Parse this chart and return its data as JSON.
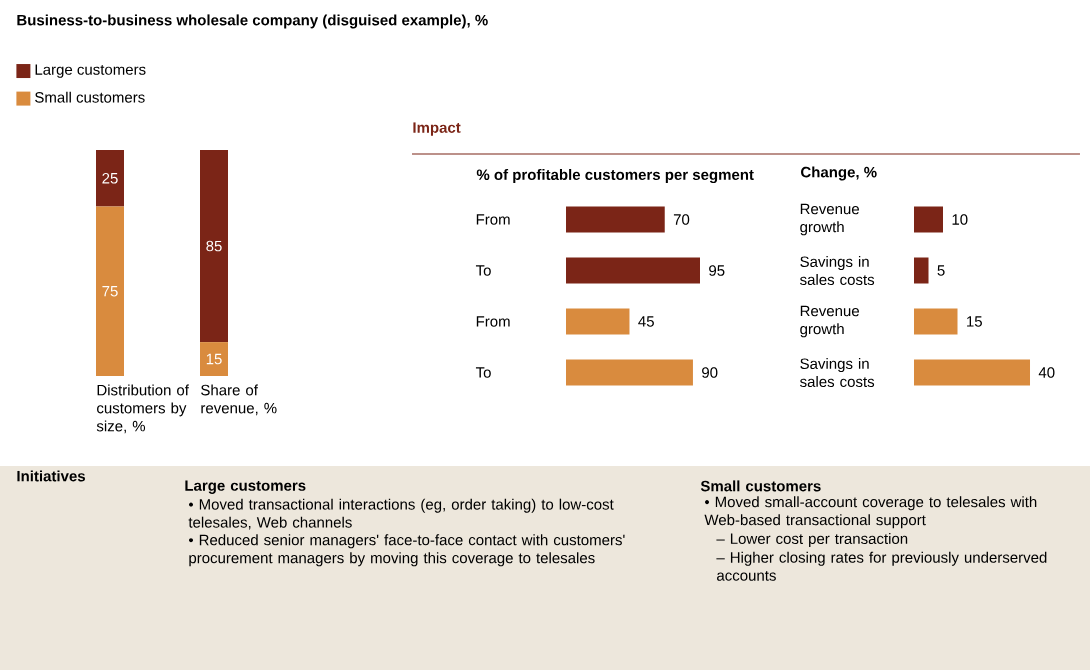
{
  "chart_data": [
    {
      "type": "bar",
      "title": "Business-to-business wholesale company (disguised example), %",
      "categories": [
        "Distribution of customers by size, %",
        "Share of revenue, %"
      ],
      "stacked": true,
      "legend": "top left",
      "data_labels": true,
      "series": [
        {
          "name": "Small customers",
          "color": "#d98b3e",
          "values": [
            75,
            15
          ]
        },
        {
          "name": "Large customers",
          "color": "#7b2517",
          "values": [
            25,
            85
          ]
        }
      ]
    },
    {
      "type": "bar",
      "title": "Impact",
      "subtitle": "% of profitable customers per segment",
      "orientation": "horizontal",
      "categories": [
        "From",
        "To",
        "From",
        "To"
      ],
      "values": [
        70,
        95,
        45,
        90
      ],
      "colors": [
        "#7b2517",
        "#7b2517",
        "#d98b3e",
        "#d98b3e"
      ],
      "data_labels": true
    },
    {
      "type": "bar",
      "title": "Change, %",
      "orientation": "horizontal",
      "categories": [
        "Revenue growth",
        "Savings in sales costs",
        "Revenue growth",
        "Savings in sales costs"
      ],
      "values": [
        10,
        5,
        15,
        40
      ],
      "colors": [
        "#7b2517",
        "#7b2517",
        "#d98b3e",
        "#d98b3e"
      ],
      "data_labels": true
    },
    {
      "type": "other",
      "title": "Initiatives",
      "annotations": [
        "Large customers",
        "• Moved transactional interactions (eg, order taking) to low-cost telesales, Web channels",
        "• Reduced senior managers' face-to-face contact with customers' procurement managers by moving this coverage to telesales",
        "Small customers",
        "• Moved small-account coverage to telesales with Web-based transactional support",
        "– Lower cost per transaction",
        "– Higher closing rates for previously underserved accounts"
      ]
    }
  ]
}
